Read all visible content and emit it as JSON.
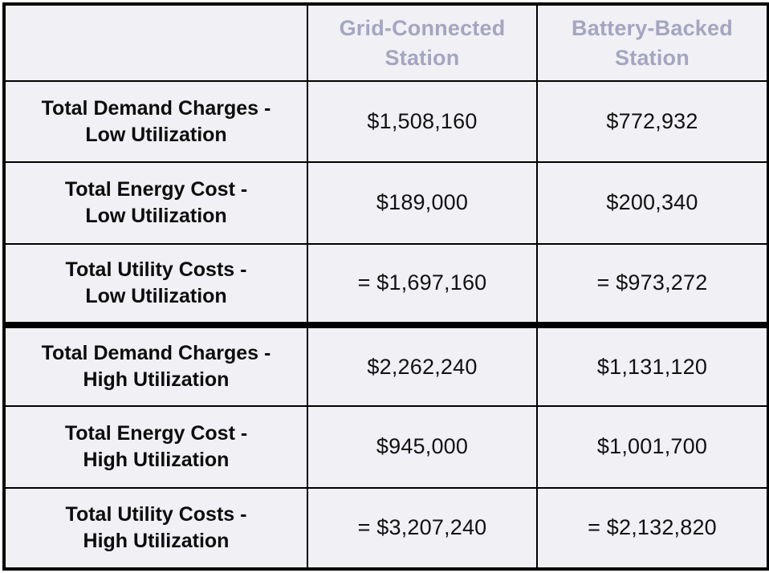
{
  "colors": {
    "cell_background": "#f0f0f5",
    "header_text": "#a5a5c0",
    "body_text": "#111111",
    "border": "#000000"
  },
  "table": {
    "columns": [
      "",
      "Grid-Connected Station",
      "Battery-Backed Station"
    ],
    "rows": [
      {
        "label_line1": "Total Demand Charges -",
        "label_line2": "Low Utilization",
        "grid": "$1,508,160",
        "battery": "$772,932"
      },
      {
        "label_line1": "Total Energy Cost -",
        "label_line2": "Low Utilization",
        "grid": "$189,000",
        "battery": "$200,340"
      },
      {
        "label_line1": "Total Utility Costs -",
        "label_line2": "Low Utilization",
        "grid": "= $1,697,160",
        "battery": "= $973,272"
      },
      {
        "label_line1": "Total Demand Charges -",
        "label_line2": "High Utilization",
        "grid": "$2,262,240",
        "battery": "$1,131,120"
      },
      {
        "label_line1": "Total Energy Cost -",
        "label_line2": "High Utilization",
        "grid": "$945,000",
        "battery": "$1,001,700"
      },
      {
        "label_line1": "Total Utility Costs -",
        "label_line2": "High Utilization",
        "grid": "= $3,207,240",
        "battery": "= $2,132,820"
      }
    ]
  }
}
